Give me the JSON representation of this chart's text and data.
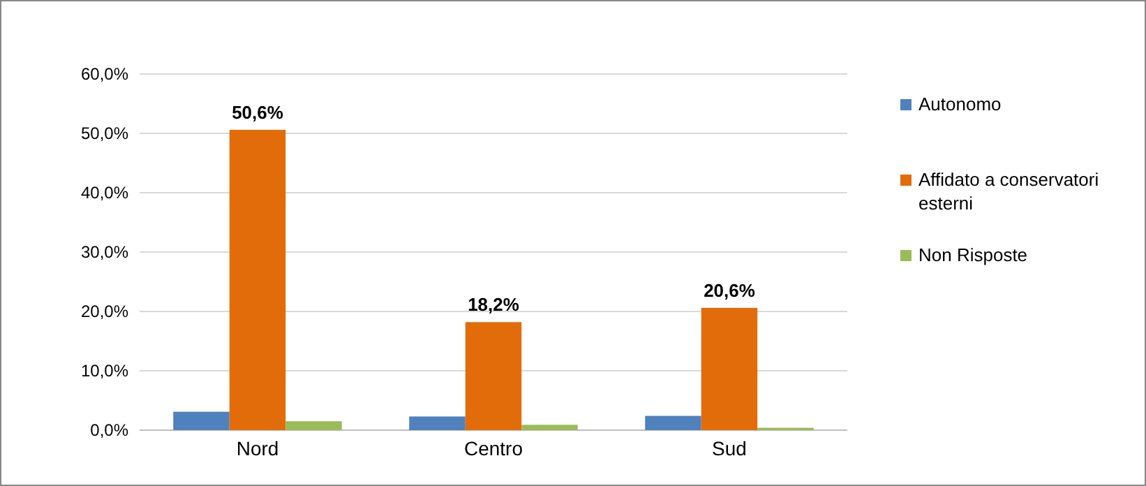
{
  "chart_data": {
    "type": "bar",
    "categories": [
      "Nord",
      "Centro",
      "Sud"
    ],
    "series": [
      {
        "name": "Autonomo",
        "color": "#4f81bd",
        "values": [
          3.1,
          2.3,
          2.4
        ]
      },
      {
        "name": "Affidato a conservatori esterni",
        "color": "#e36c0a",
        "values": [
          50.6,
          18.2,
          20.6
        ],
        "value_labels": [
          "50,6%",
          "18,2%",
          "20,6%"
        ]
      },
      {
        "name": "Non Risposte",
        "color": "#9bbb59",
        "values": [
          1.5,
          0.9,
          0.4
        ]
      }
    ],
    "ylim": [
      0,
      60
    ],
    "yticks": [
      {
        "value": 0,
        "label": "0,0%"
      },
      {
        "value": 10,
        "label": "10,0%"
      },
      {
        "value": 20,
        "label": "20,0%"
      },
      {
        "value": 30,
        "label": "30,0%"
      },
      {
        "value": 40,
        "label": "40,0%"
      },
      {
        "value": 50,
        "label": "50,0%"
      },
      {
        "value": 60,
        "label": "60,0%"
      }
    ],
    "grid": "y",
    "legend": "right"
  }
}
